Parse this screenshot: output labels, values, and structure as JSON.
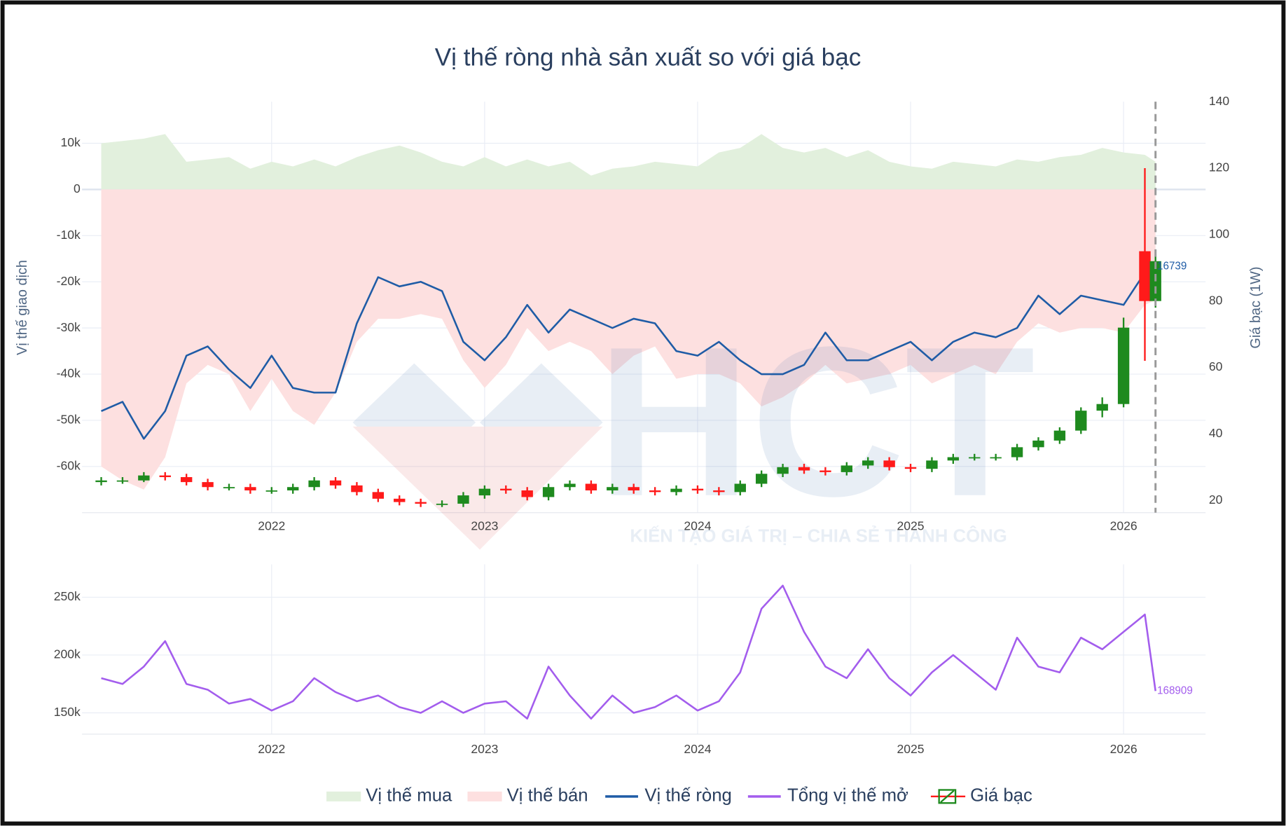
{
  "watermark": {
    "logo": "HCT",
    "slogan": "KIẾN TẠO GIÁ TRỊ – CHIA SẺ THÀNH CÔNG"
  },
  "chart_data": [
    {
      "type": "combo",
      "title": "Vị thế ròng nhà sản xuất so với giá bạc",
      "y_label": "Vị thế giao dịch",
      "y2_label": "Giá bạc (1W)",
      "xlim": [
        2021.11,
        2026.385
      ],
      "xticks": [
        2022,
        2023,
        2024,
        2025,
        2026
      ],
      "ylim": [
        -70000,
        19000
      ],
      "yticks": [
        {
          "value": -60000,
          "label": "-60k"
        },
        {
          "value": -50000,
          "label": "-50k"
        },
        {
          "value": -40000,
          "label": "-40k"
        },
        {
          "value": -30000,
          "label": "-30k"
        },
        {
          "value": -20000,
          "label": "-20k"
        },
        {
          "value": -10000,
          "label": "-10k"
        },
        0,
        {
          "value": 10000,
          "label": "10k"
        }
      ],
      "y2lim": [
        16.3,
        140
      ],
      "y2ticks": [
        20,
        40,
        60,
        80,
        100,
        120,
        140
      ],
      "grid": true,
      "vline_x": 2026.15,
      "annotation": "16739",
      "x": [
        2021.2,
        2021.3,
        2021.4,
        2021.5,
        2021.6,
        2021.7,
        2021.8,
        2021.9,
        2022.0,
        2022.1,
        2022.2,
        2022.3,
        2022.4,
        2022.5,
        2022.6,
        2022.7,
        2022.8,
        2022.9,
        2023.0,
        2023.1,
        2023.2,
        2023.3,
        2023.4,
        2023.5,
        2023.6,
        2023.7,
        2023.8,
        2023.9,
        2024.0,
        2024.1,
        2024.2,
        2024.3,
        2024.4,
        2024.5,
        2024.6,
        2024.7,
        2024.8,
        2024.9,
        2025.0,
        2025.1,
        2025.2,
        2025.3,
        2025.4,
        2025.5,
        2025.6,
        2025.7,
        2025.8,
        2025.9,
        2026.0,
        2026.1,
        2026.15
      ],
      "series": [
        {
          "name": "Vị thế mua",
          "type": "area",
          "color": "#e2f0dd",
          "values": [
            10000,
            10500,
            11000,
            12000,
            6000,
            6500,
            7000,
            4500,
            6000,
            5000,
            6500,
            5000,
            7000,
            8500,
            9500,
            8000,
            6000,
            5000,
            7000,
            5000,
            6500,
            5000,
            6000,
            3000,
            4500,
            5000,
            6000,
            5500,
            5000,
            8000,
            9000,
            12000,
            9000,
            8000,
            9000,
            7000,
            8500,
            6000,
            5000,
            4500,
            6000,
            5500,
            5000,
            6500,
            6000,
            7000,
            7500,
            9000,
            8000,
            7500,
            6000
          ]
        },
        {
          "name": "Vị thế bán",
          "type": "area",
          "color": "#fde0e0",
          "values": [
            -60000,
            -63000,
            -65000,
            -58000,
            -42000,
            -38000,
            -40000,
            -48000,
            -41000,
            -48000,
            -51000,
            -44000,
            -33000,
            -28000,
            -28000,
            -27000,
            -28000,
            -37000,
            -43000,
            -38000,
            -30000,
            -35000,
            -33000,
            -35000,
            -40000,
            -36000,
            -34000,
            -41000,
            -40000,
            -40000,
            -42000,
            -47000,
            -45000,
            -42000,
            -38000,
            -42000,
            -41000,
            -40000,
            -38000,
            -42000,
            -40000,
            -38000,
            -40000,
            -33000,
            -29000,
            -31000,
            -30000,
            -30000,
            -31000,
            -25000,
            -24000
          ]
        },
        {
          "name": "Vị thế ròng",
          "type": "line",
          "color": "#1f5ca6",
          "values": [
            -48000,
            -46000,
            -54000,
            -48000,
            -36000,
            -34000,
            -39000,
            -43000,
            -36000,
            -43000,
            -44000,
            -44000,
            -29000,
            -19000,
            -21000,
            -20000,
            -22000,
            -33000,
            -37000,
            -32000,
            -25000,
            -31000,
            -26000,
            -28000,
            -30000,
            -28000,
            -29000,
            -35000,
            -36000,
            -33000,
            -37000,
            -40000,
            -40000,
            -38000,
            -31000,
            -37000,
            -37000,
            -35000,
            -33000,
            -37000,
            -33000,
            -31000,
            -32000,
            -30000,
            -23000,
            -27000,
            -23000,
            -24000,
            -25000,
            -18000,
            -16739
          ]
        },
        {
          "name": "Giá bạc",
          "type": "candlestick",
          "axis": "y2",
          "increasing_color": "#1e8a1e",
          "decreasing_color": "#ff1a1a",
          "open": [
            25.5,
            26,
            26,
            27.5,
            27,
            25.5,
            24,
            24,
            23,
            23,
            24,
            26,
            24.5,
            22.5,
            20.5,
            19.5,
            19,
            19,
            21.5,
            23.5,
            23,
            21,
            24,
            25,
            23,
            24,
            23,
            22.5,
            23.5,
            23,
            22.5,
            25,
            28,
            30,
            29,
            28.5,
            30.5,
            32,
            30,
            29.5,
            32,
            33,
            33,
            33,
            36,
            38,
            41,
            47,
            49,
            95,
            80
          ],
          "high": [
            27,
            27,
            28.5,
            28.5,
            28,
            26.5,
            25,
            25,
            24,
            25,
            27,
            27,
            25.5,
            23.5,
            21.5,
            20.5,
            20,
            22.5,
            24.5,
            24.5,
            24,
            25,
            26,
            26,
            25,
            25,
            24,
            24.5,
            24.5,
            24,
            26,
            29,
            31,
            31,
            30,
            31.5,
            33,
            33,
            31,
            33,
            34,
            34,
            34,
            37,
            39,
            42,
            48,
            51,
            75,
            120,
            95
          ],
          "low": [
            24.5,
            25,
            25.5,
            26,
            24.5,
            23,
            23,
            22,
            22,
            22,
            23,
            23.5,
            21.5,
            19.5,
            18.5,
            18,
            18,
            18,
            20.5,
            22,
            20,
            20,
            23,
            22,
            22,
            22,
            21.5,
            21.5,
            22,
            21.5,
            21.5,
            24,
            27,
            28,
            27.5,
            27.5,
            29.5,
            29,
            28.5,
            28.5,
            31,
            32,
            32,
            32,
            35,
            37,
            40,
            45,
            48,
            62,
            78
          ],
          "close": [
            26,
            26,
            27.5,
            27,
            25.5,
            24,
            24,
            23,
            23,
            24,
            26,
            24.5,
            22.5,
            20.5,
            19.5,
            19,
            19,
            21.5,
            23.5,
            23,
            21,
            24,
            25,
            23,
            24,
            23,
            22.5,
            23.5,
            23,
            22.5,
            25,
            28,
            30,
            29,
            28.5,
            30.5,
            32,
            30,
            29.5,
            32,
            33,
            33,
            33,
            36,
            38,
            41,
            47,
            49,
            72,
            80,
            92
          ]
        }
      ]
    },
    {
      "type": "line",
      "xlim": [
        2021.11,
        2026.385
      ],
      "xticks": [
        2022,
        2023,
        2024,
        2025,
        2026
      ],
      "ylim": [
        131600,
        278400
      ],
      "yticks": [
        {
          "value": 150000,
          "label": "150k"
        },
        {
          "value": 200000,
          "label": "200k"
        },
        {
          "value": 250000,
          "label": "250k"
        }
      ],
      "grid": true,
      "annotation": "168909",
      "x": [
        2021.2,
        2021.3,
        2021.4,
        2021.5,
        2021.6,
        2021.7,
        2021.8,
        2021.9,
        2022.0,
        2022.1,
        2022.2,
        2022.3,
        2022.4,
        2022.5,
        2022.6,
        2022.7,
        2022.8,
        2022.9,
        2023.0,
        2023.1,
        2023.2,
        2023.3,
        2023.4,
        2023.5,
        2023.6,
        2023.7,
        2023.8,
        2023.9,
        2024.0,
        2024.1,
        2024.2,
        2024.3,
        2024.4,
        2024.5,
        2024.6,
        2024.7,
        2024.8,
        2024.9,
        2025.0,
        2025.1,
        2025.2,
        2025.3,
        2025.4,
        2025.5,
        2025.6,
        2025.7,
        2025.8,
        2025.9,
        2026.0,
        2026.1,
        2026.15
      ],
      "series": [
        {
          "name": "Tổng vị thế mở",
          "type": "line",
          "color": "#a35ded",
          "values": [
            180000,
            175000,
            190000,
            212000,
            175000,
            170000,
            158000,
            162000,
            152000,
            160000,
            180000,
            168000,
            160000,
            165000,
            155000,
            150000,
            160000,
            150000,
            158000,
            160000,
            145000,
            190000,
            165000,
            145000,
            165000,
            150000,
            155000,
            165000,
            152000,
            160000,
            185000,
            240000,
            260000,
            220000,
            190000,
            180000,
            205000,
            180000,
            165000,
            185000,
            200000,
            185000,
            170000,
            215000,
            190000,
            185000,
            215000,
            205000,
            220000,
            235000,
            168909
          ]
        }
      ]
    }
  ]
}
